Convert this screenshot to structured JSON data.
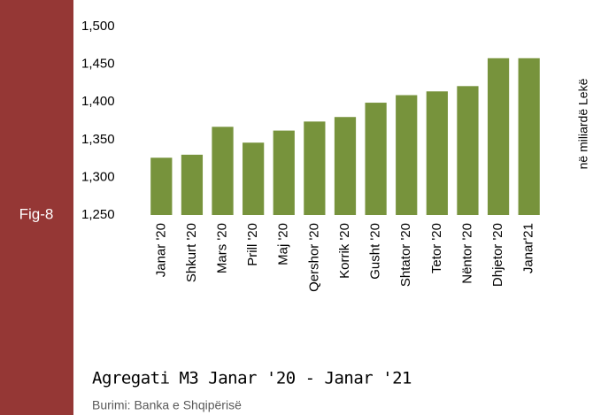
{
  "chart_data": {
    "type": "bar",
    "title": "Agregati M3 Janar '20  - Janar '21",
    "figure_label": "Fig-8",
    "source": "Burimi: Banka e Shqipërisë",
    "y_axis_label": "në miliardë Lekë",
    "categories": [
      "Janar '20",
      "Shkurt '20",
      "Mars '20",
      "Prill '20",
      "Maj '20",
      "Qershor '20",
      "Korrik '20",
      "Gusht '20",
      "Shtator '20",
      "Tetor '20",
      "Nëntor '20",
      "Dhjetor '20",
      "Janar'21"
    ],
    "values": [
      1326,
      1330,
      1367,
      1346,
      1362,
      1374,
      1380,
      1399,
      1409,
      1414,
      1421,
      1458,
      1458
    ],
    "color": "#77933c",
    "ylim": [
      1250,
      1500
    ],
    "yticks": [
      {
        "value": 1250,
        "label": "1,250"
      },
      {
        "value": 1300,
        "label": "1,300"
      },
      {
        "value": 1350,
        "label": "1,350"
      },
      {
        "value": 1400,
        "label": "1,400"
      },
      {
        "value": 1450,
        "label": "1,450"
      },
      {
        "value": 1500,
        "label": "1,500"
      }
    ],
    "grid": false
  }
}
